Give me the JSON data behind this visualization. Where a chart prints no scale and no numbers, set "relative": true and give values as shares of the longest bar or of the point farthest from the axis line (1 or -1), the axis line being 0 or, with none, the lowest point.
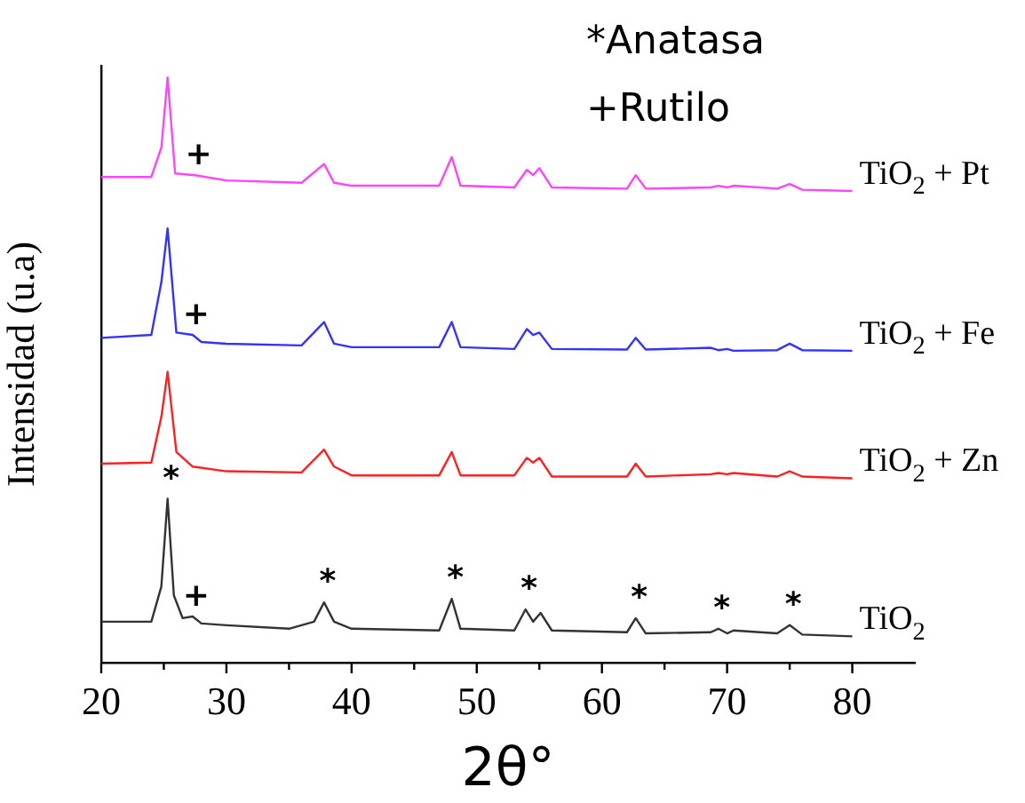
{
  "chart_data": {
    "type": "line",
    "xlabel": "2θ°",
    "ylabel": "Intensidad (u.a)",
    "relative": true,
    "legend": false,
    "marker": "none",
    "line_style": "solid",
    "grid": false,
    "xlim": [
      20,
      85
    ],
    "xticks": [
      20,
      {
        "value": 25,
        "label": null
      },
      30,
      {
        "value": 35,
        "label": null
      },
      40,
      {
        "value": 45,
        "label": null
      },
      50,
      {
        "value": 55,
        "label": null
      },
      60,
      {
        "value": 65,
        "label": null
      },
      70,
      {
        "value": 75,
        "label": null
      },
      80
    ],
    "series": [
      {
        "name": "TiO$_{2}$ + Pt",
        "color": "#ff44ff",
        "x": [
          20,
          24,
          24.8,
          25.3,
          25.9,
          27.5,
          30,
          36,
          37.8,
          38.6,
          40,
          47,
          48,
          48.7,
          53,
          54,
          54.5,
          55,
          56,
          62,
          62.7,
          63.5,
          68.7,
          69.3,
          70,
          70.5,
          74,
          75,
          76,
          80
        ],
        "values": [
          0.83,
          0.83,
          0.88,
          1,
          0.836,
          0.833,
          0.824,
          0.82,
          0.852,
          0.82,
          0.815,
          0.815,
          0.864,
          0.815,
          0.812,
          0.842,
          0.833,
          0.845,
          0.812,
          0.81,
          0.833,
          0.81,
          0.812,
          0.815,
          0.812,
          0.815,
          0.81,
          0.818,
          0.808,
          0.806
        ]
      },
      {
        "name": "TiO$_{2}$ + Fe",
        "color": "#3333ff",
        "x": [
          20,
          24,
          24.8,
          25.3,
          26,
          27.3,
          28,
          30,
          36,
          37.8,
          38.6,
          40,
          47,
          48,
          48.7,
          53,
          54,
          54.5,
          55,
          56,
          62,
          62.7,
          63.5,
          68.7,
          69.3,
          70,
          70.5,
          74,
          75,
          76,
          80
        ],
        "values": [
          0.555,
          0.56,
          0.65,
          0.742,
          0.564,
          0.56,
          0.548,
          0.545,
          0.542,
          0.582,
          0.545,
          0.539,
          0.539,
          0.582,
          0.539,
          0.536,
          0.57,
          0.56,
          0.564,
          0.536,
          0.535,
          0.555,
          0.535,
          0.538,
          0.534,
          0.536,
          0.533,
          0.534,
          0.545,
          0.534,
          0.533
        ]
      },
      {
        "name": "TiO$_{2}$ + Zn",
        "color": "#ff2020",
        "x": [
          20,
          24,
          24.8,
          25.3,
          26,
          27.3,
          30,
          36,
          37.8,
          38.6,
          40,
          47,
          48,
          48.7,
          53,
          54,
          54.5,
          55,
          56,
          62,
          62.7,
          63.5,
          68.7,
          69.3,
          70,
          70.5,
          74,
          75,
          76,
          80
        ],
        "values": [
          0.34,
          0.342,
          0.42,
          0.497,
          0.36,
          0.335,
          0.327,
          0.325,
          0.364,
          0.335,
          0.32,
          0.32,
          0.36,
          0.32,
          0.32,
          0.35,
          0.342,
          0.35,
          0.318,
          0.318,
          0.34,
          0.318,
          0.322,
          0.324,
          0.322,
          0.324,
          0.318,
          0.327,
          0.318,
          0.315
        ]
      },
      {
        "name": "TiO$_{2}$",
        "color": "#333333",
        "x": [
          20,
          24,
          24.8,
          25.3,
          25.8,
          26.5,
          27.3,
          28,
          30,
          35,
          37,
          37.8,
          38.6,
          40,
          47,
          48,
          48.7,
          53,
          53.9,
          54.5,
          55.1,
          56,
          62,
          62.7,
          63.5,
          68.7,
          69.3,
          70,
          70.5,
          74,
          75,
          76,
          80
        ],
        "values": [
          0.07,
          0.07,
          0.13,
          0.28,
          0.115,
          0.076,
          0.079,
          0.067,
          0.064,
          0.058,
          0.07,
          0.103,
          0.07,
          0.058,
          0.055,
          0.109,
          0.058,
          0.055,
          0.091,
          0.07,
          0.085,
          0.055,
          0.052,
          0.076,
          0.05,
          0.052,
          0.058,
          0.05,
          0.055,
          0.05,
          0.064,
          0.048,
          0.045
        ]
      }
    ],
    "annotations": [
      "*Anatasa",
      "+Rutilo",
      {
        "text": "+",
        "x": 27.5,
        "y": 0.833
      },
      {
        "text": "+",
        "x": 27.3,
        "y": 0.56
      },
      {
        "text": "+",
        "x": 27.3,
        "y": 0.079
      },
      {
        "text": "*",
        "x": 25.3,
        "y": 0.28
      },
      {
        "text": "*",
        "x": 37.8,
        "y": 0.103
      },
      {
        "text": "*",
        "x": 48,
        "y": 0.109
      },
      {
        "text": "*",
        "x": 53.9,
        "y": 0.091
      },
      {
        "text": "*",
        "x": 62.7,
        "y": 0.076
      },
      {
        "text": "*",
        "x": 69.3,
        "y": 0.058
      },
      {
        "text": "*",
        "x": 75,
        "y": 0.064
      }
    ]
  }
}
